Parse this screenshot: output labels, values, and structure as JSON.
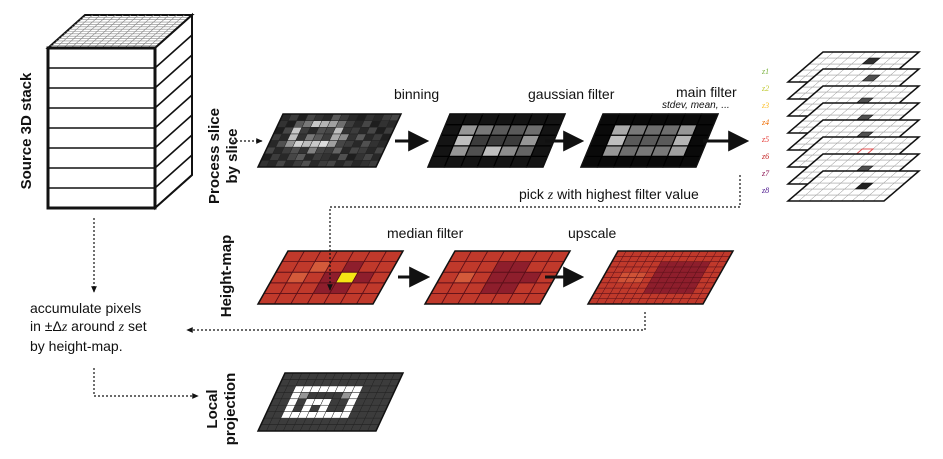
{
  "labels": {
    "source_stack": "Source 3D stack",
    "process_slice": [
      "Process slice",
      "by slice"
    ],
    "height_map": "Height-map",
    "local_projection": [
      "Local",
      "projection"
    ],
    "binning": "binning",
    "gaussian_filter": "gaussian filter",
    "main_filter": "main filter",
    "main_filter_options": "stdev, mean, ...",
    "pick_z_pre": "pick",
    "pick_z_var": "z",
    "pick_z_post": "with highest filter value",
    "median_filter": "median filter",
    "upscale": "upscale",
    "accumulate_line1": "accumulate pixels",
    "accumulate_line2_pre": "in ±Δ",
    "accumulate_line2_var": "z",
    "accumulate_line2_mid": " around ",
    "accumulate_line2_var2": "z",
    "accumulate_line2_post": " set",
    "accumulate_line3": "by height-map."
  },
  "z_slices": [
    {
      "label": "z1",
      "color": "#7cb342"
    },
    {
      "label": "z2",
      "color": "#c0ca33"
    },
    {
      "label": "z3",
      "color": "#fbc02d"
    },
    {
      "label": "z4",
      "color": "#ef6c00"
    },
    {
      "label": "z5",
      "color": "#e53935"
    },
    {
      "label": "z6",
      "color": "#c62828"
    },
    {
      "label": "z7",
      "color": "#880e4f"
    },
    {
      "label": "z8",
      "color": "#4a148c"
    }
  ],
  "colors": {
    "stroke": "#111111",
    "heatmap_base": "#c0392b",
    "heatmap_dark": "#8e1e2c",
    "heatmap_highlight": "#f5e614"
  }
}
